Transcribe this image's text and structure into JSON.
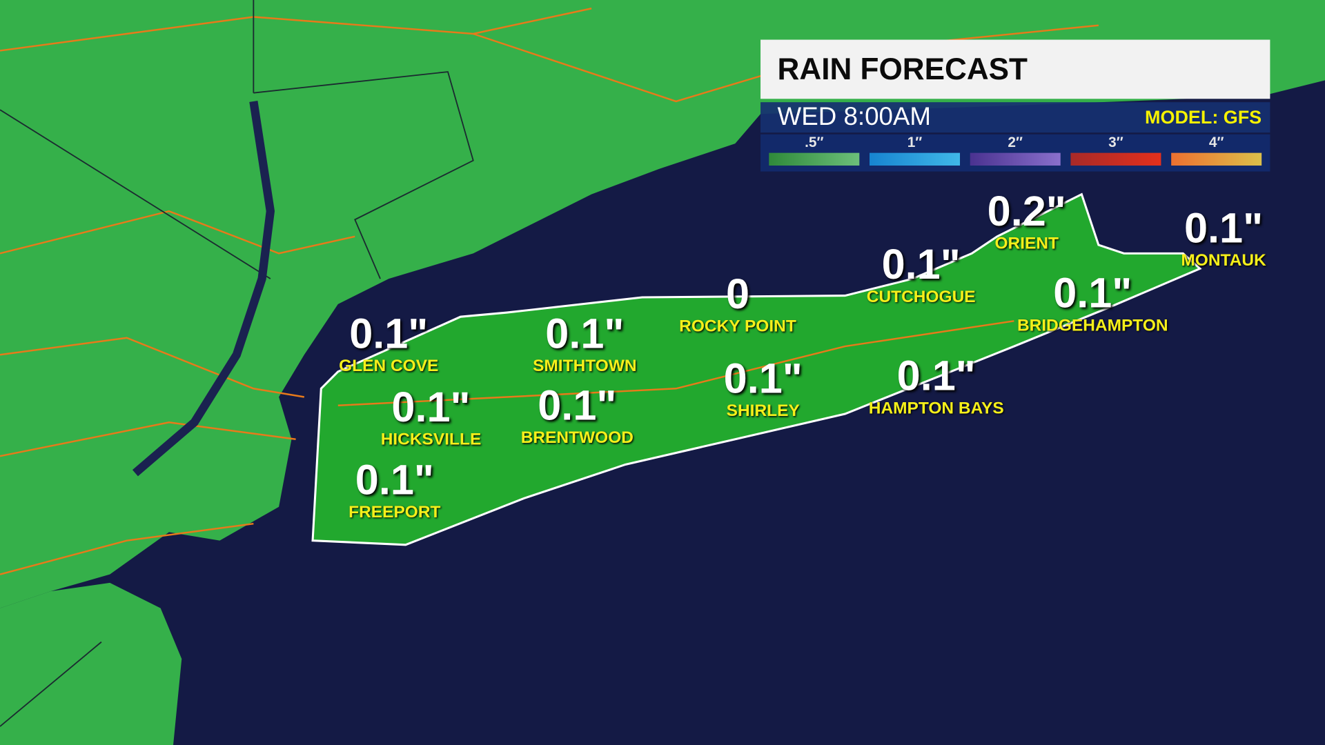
{
  "header": {
    "title": "RAIN FORECAST",
    "time": "WED 8:00AM",
    "model": "MODEL: GFS"
  },
  "legend": [
    {
      "label": ".5″",
      "colors": [
        "#2f8a3a",
        "#6cbf7a"
      ]
    },
    {
      "label": "1″",
      "colors": [
        "#1784d0",
        "#40b8e8"
      ]
    },
    {
      "label": "2″",
      "colors": [
        "#4a3290",
        "#8a70cc"
      ]
    },
    {
      "label": "3″",
      "colors": [
        "#a82a28",
        "#e4301c"
      ]
    },
    {
      "label": "4″",
      "colors": [
        "#ec7030",
        "#dcc04a"
      ]
    }
  ],
  "colors": {
    "land": "#35b04a",
    "ocean": "#141a45",
    "roads": "#e87a1a",
    "borders": "#1b2a30"
  },
  "locations": [
    {
      "name": "GLEN COVE",
      "value": "0.1\""
    },
    {
      "name": "SMITHTOWN",
      "value": "0.1\""
    },
    {
      "name": "ROCKY POINT",
      "value": "0"
    },
    {
      "name": "CUTCHOGUE",
      "value": "0.1\""
    },
    {
      "name": "ORIENT",
      "value": "0.2\""
    },
    {
      "name": "MONTAUK",
      "value": "0.1\""
    },
    {
      "name": "BRIDGEHAMPTON",
      "value": "0.1\""
    },
    {
      "name": "HICKSVILLE",
      "value": "0.1\""
    },
    {
      "name": "BRENTWOOD",
      "value": "0.1\""
    },
    {
      "name": "SHIRLEY",
      "value": "0.1\""
    },
    {
      "name": "HAMPTON BAYS",
      "value": "0.1\""
    },
    {
      "name": "FREEPORT",
      "value": "0.1\""
    }
  ]
}
